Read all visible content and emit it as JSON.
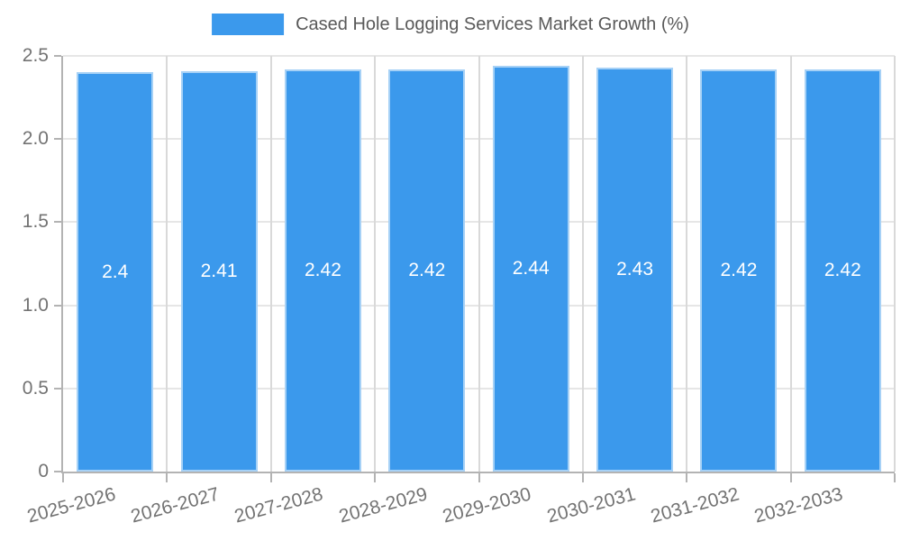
{
  "chart_data": {
    "type": "bar",
    "title": "Cased Hole Logging Services Market Growth (%)",
    "categories": [
      "2025-2026",
      "2026-2027",
      "2027-2028",
      "2028-2029",
      "2029-2030",
      "2030-2031",
      "2031-2032",
      "2032-2033"
    ],
    "values": [
      2.4,
      2.41,
      2.42,
      2.42,
      2.44,
      2.43,
      2.42,
      2.42
    ],
    "value_labels": [
      "2.4",
      "2.41",
      "2.42",
      "2.42",
      "2.44",
      "2.43",
      "2.42",
      "2.42"
    ],
    "y_ticks": [
      "0",
      "0.5",
      "1.0",
      "1.5",
      "2.0",
      "2.5"
    ],
    "y_tick_values": [
      0,
      0.5,
      1.0,
      1.5,
      2.0,
      2.5
    ],
    "ylim": [
      0,
      2.5
    ],
    "xlabel": "",
    "ylabel": "",
    "grid": true,
    "legend_position": "top",
    "x_label_rotation_deg": -15,
    "colors": {
      "bar_fill": "#3B99EC",
      "bar_border": "rgba(255,255,255,0.55)",
      "grid_h": "#e6e6e6",
      "grid_v": "#d9d9d9",
      "axis": "#b3b3b3",
      "axis_text": "#737373",
      "legend_text": "#595959",
      "value_text": "#ffffff"
    }
  }
}
